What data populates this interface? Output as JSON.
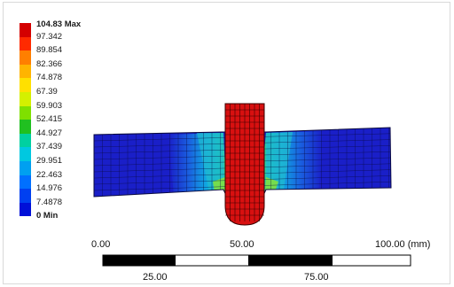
{
  "legend": {
    "max_label": "104.83 Max",
    "min_label": "0 Min",
    "labels": [
      "97.342",
      "89.854",
      "82.366",
      "74.878",
      "67.39",
      "59.903",
      "52.415",
      "44.927",
      "37.439",
      "29.951",
      "22.463",
      "14.976",
      "7.4878"
    ],
    "colors": [
      "#d40000",
      "#ff2a00",
      "#ff7f00",
      "#ffb400",
      "#ffe000",
      "#d4f000",
      "#7fe000",
      "#20c020",
      "#00d0a0",
      "#00c8e0",
      "#00a0f0",
      "#0070ff",
      "#0040f0",
      "#0010d8"
    ]
  },
  "scale": {
    "top_labels": [
      "0.00",
      "50.00",
      "100.00 (mm)"
    ],
    "bottom_labels": [
      "25.00",
      "75.00"
    ]
  },
  "colors": {
    "plate_blue": "#1a1fc8",
    "indenter_red": "#d81010",
    "mesh_line": "#0a0a40"
  }
}
